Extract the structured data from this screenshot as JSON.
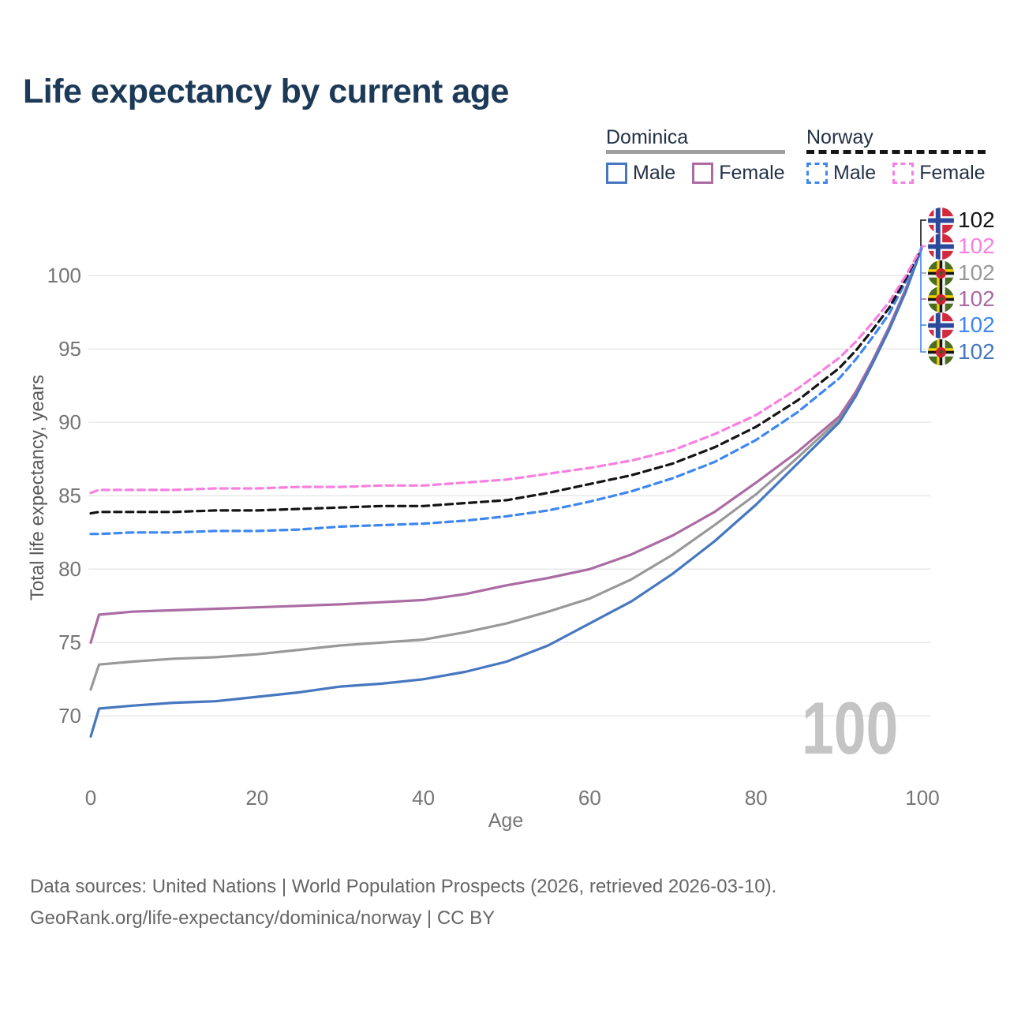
{
  "title": "Life expectancy by current age",
  "legend": {
    "groups": [
      {
        "name": "Dominica",
        "line_style": "solid",
        "underline_color": "#9e9e9e",
        "items": [
          {
            "label": "Male",
            "color": "#4677bf",
            "dashed": false
          },
          {
            "label": "Female",
            "color": "#ab6ba3",
            "dashed": false
          }
        ]
      },
      {
        "name": "Norway",
        "line_style": "dashed",
        "underline_color": "#151515",
        "items": [
          {
            "label": "Male",
            "color": "#3e86f0",
            "dashed": true
          },
          {
            "label": "Female",
            "color": "#f87fe0",
            "dashed": true
          }
        ]
      }
    ]
  },
  "chart_data": {
    "type": "line",
    "title": "Life expectancy by current age",
    "xlabel": "Age",
    "ylabel": "Total life expectancy, years",
    "xlim": [
      0,
      100
    ],
    "ylim": [
      68,
      103
    ],
    "x_ticks": [
      0,
      20,
      40,
      60,
      80,
      100
    ],
    "y_ticks": [
      70,
      75,
      80,
      85,
      90,
      95,
      100
    ],
    "grid": "horizontal",
    "ages": [
      0,
      1,
      5,
      10,
      15,
      20,
      25,
      30,
      35,
      40,
      45,
      50,
      55,
      60,
      65,
      70,
      75,
      80,
      85,
      90,
      92,
      94,
      96,
      98,
      100
    ],
    "series": [
      {
        "name": "Dominica Total",
        "country": "dominica",
        "color": "#999999",
        "dashed": false,
        "values": [
          71.8,
          73.5,
          73.7,
          73.9,
          74.0,
          74.2,
          74.5,
          74.8,
          75.0,
          75.2,
          75.7,
          76.3,
          77.1,
          78.0,
          79.3,
          81.0,
          83.0,
          85.1,
          87.6,
          90.2,
          92.0,
          94.1,
          96.4,
          99.0,
          102
        ]
      },
      {
        "name": "Dominica Female",
        "country": "dominica",
        "color": "#ab6ba3",
        "dashed": false,
        "values": [
          75.0,
          76.9,
          77.1,
          77.2,
          77.3,
          77.4,
          77.5,
          77.6,
          77.75,
          77.9,
          78.3,
          78.9,
          79.4,
          80.0,
          81.0,
          82.3,
          83.9,
          85.9,
          88.0,
          90.4,
          92.1,
          94.2,
          96.5,
          99.1,
          102
        ]
      },
      {
        "name": "Dominica Male",
        "country": "dominica",
        "color": "#4677bf",
        "dashed": false,
        "values": [
          68.6,
          70.5,
          70.7,
          70.9,
          71.0,
          71.3,
          71.6,
          72.0,
          72.2,
          72.5,
          73.0,
          73.7,
          74.8,
          76.3,
          77.8,
          79.7,
          81.9,
          84.4,
          87.2,
          90.0,
          91.8,
          94.0,
          96.3,
          98.9,
          102
        ]
      },
      {
        "name": "Norway Male",
        "country": "norway",
        "color": "#3e86f0",
        "dashed": true,
        "values": [
          82.4,
          82.4,
          82.5,
          82.5,
          82.6,
          82.6,
          82.7,
          82.9,
          83.0,
          83.1,
          83.3,
          83.6,
          84.0,
          84.6,
          85.3,
          86.2,
          87.3,
          88.8,
          90.7,
          93.0,
          94.3,
          95.8,
          97.4,
          99.6,
          102
        ]
      },
      {
        "name": "Norway Total",
        "country": "norway",
        "color": "#141414",
        "dashed": true,
        "values": [
          83.8,
          83.9,
          83.9,
          83.9,
          84.0,
          84.0,
          84.1,
          84.2,
          84.3,
          84.3,
          84.5,
          84.7,
          85.2,
          85.8,
          86.4,
          87.2,
          88.3,
          89.7,
          91.5,
          93.7,
          94.9,
          96.3,
          97.8,
          99.8,
          102
        ]
      },
      {
        "name": "Norway Female",
        "country": "norway",
        "color": "#f87fe0",
        "dashed": true,
        "values": [
          85.2,
          85.4,
          85.4,
          85.4,
          85.5,
          85.5,
          85.6,
          85.6,
          85.7,
          85.7,
          85.9,
          86.1,
          86.5,
          86.9,
          87.4,
          88.1,
          89.2,
          90.5,
          92.3,
          94.4,
          95.5,
          96.8,
          98.2,
          100.0,
          102
        ]
      }
    ],
    "end_labels": [
      {
        "series": "Norway Total",
        "flag": "norway",
        "value": "102",
        "color": "#141414"
      },
      {
        "series": "Norway Female",
        "flag": "norway",
        "value": "102",
        "color": "#f87fe0"
      },
      {
        "series": "Dominica Total",
        "flag": "dominica",
        "value": "102",
        "color": "#999999"
      },
      {
        "series": "Dominica Female",
        "flag": "dominica",
        "value": "102",
        "color": "#ab6ba3"
      },
      {
        "series": "Norway Male",
        "flag": "norway",
        "value": "102",
        "color": "#3e86f0"
      },
      {
        "series": "Dominica Male",
        "flag": "dominica",
        "value": "102",
        "color": "#4677bf"
      }
    ],
    "legend_position": "top-right",
    "watermark": "100"
  },
  "footer": {
    "line1": "Data sources: United Nations | World Population Prospects (2026, retrieved 2026-03-10).",
    "line2": "GeoRank.org/life-expectancy/dominica/norway | CC BY"
  }
}
